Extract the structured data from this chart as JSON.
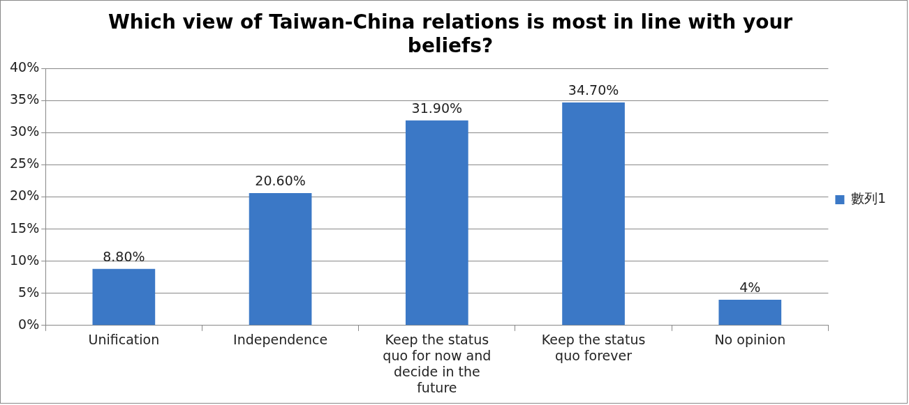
{
  "chart_data": {
    "type": "bar",
    "title": "Which view of Taiwan-China relations is most in line with your beliefs?",
    "categories": [
      "Unification",
      "Independence",
      "Keep the status quo for now and decide in the future",
      "Keep the status quo forever",
      "No opinion"
    ],
    "series": [
      {
        "name": "數列1",
        "color": "#3b78c6",
        "values": [
          8.8,
          20.6,
          31.9,
          34.7,
          4
        ],
        "value_labels": [
          "8.80%",
          "20.60%",
          "31.90%",
          "34.70%",
          "4%"
        ]
      }
    ],
    "ylim": [
      0,
      40
    ],
    "yticks": [
      {
        "value": 0,
        "label": "0%"
      },
      {
        "value": 5,
        "label": "5%"
      },
      {
        "value": 10,
        "label": "10%"
      },
      {
        "value": 15,
        "label": "15%"
      },
      {
        "value": 20,
        "label": "20%"
      },
      {
        "value": 25,
        "label": "25%"
      },
      {
        "value": 30,
        "label": "30%"
      },
      {
        "value": 35,
        "label": "35%"
      },
      {
        "value": 40,
        "label": "40%"
      }
    ],
    "grid": "y",
    "legend": "right"
  }
}
